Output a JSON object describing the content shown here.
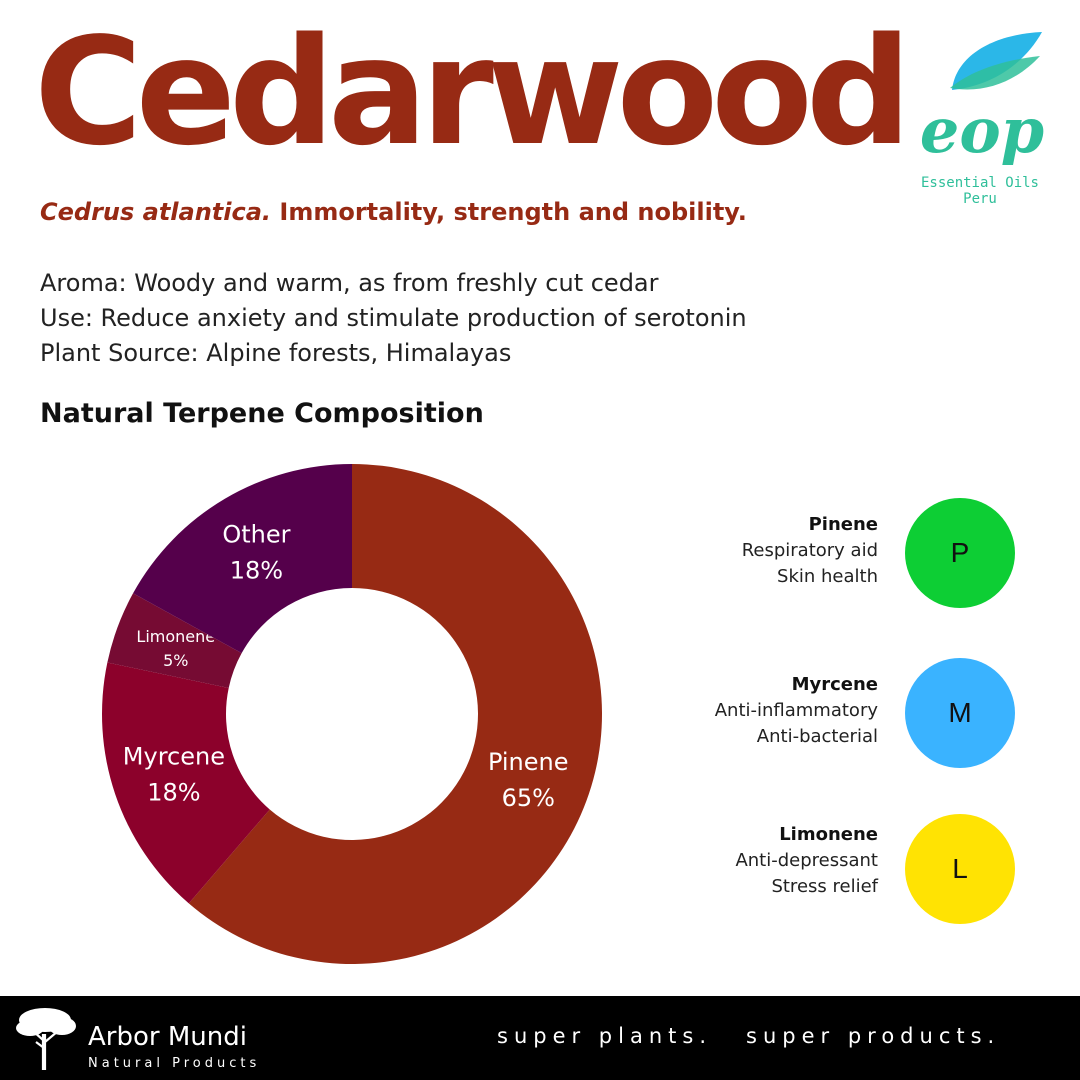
{
  "header": {
    "title": "Cedarwood",
    "species": "Cedrus atlantica.",
    "tagline": "Immortality, strength and nobility."
  },
  "info": {
    "aroma": "Aroma: Woody and warm, as from freshly cut cedar",
    "use": "Use: Reduce anxiety and stimulate production of serotonin",
    "source": "Plant Source: Alpine forests, Himalayas"
  },
  "logo": {
    "mark": "eop",
    "line1": "Essential Oils",
    "line2": "Peru",
    "color": "#2fbf9a",
    "leaf_color": "#2bb7e8"
  },
  "section_title": "Natural Terpene Composition",
  "chart_data": {
    "type": "pie",
    "donut": true,
    "title": "",
    "labels": [
      "Pinene",
      "Myrcene",
      "Limonene",
      "Other"
    ],
    "values": [
      65,
      18,
      5,
      18
    ],
    "value_labels": [
      "65%",
      "18%",
      "5%",
      "18%"
    ],
    "colors": [
      "#972a14",
      "#8c012b",
      "#760b33",
      "#55004b"
    ],
    "start": "top",
    "direction": "clockwise"
  },
  "benefits": [
    {
      "name": "Pinene",
      "lines": [
        "Respiratory aid",
        "Skin health"
      ],
      "letter": "P",
      "color": "#0dce34"
    },
    {
      "name": "Myrcene",
      "lines": [
        "Anti-inflammatory",
        "Anti-bacterial"
      ],
      "letter": "M",
      "color": "#3ab3ff"
    },
    {
      "name": "Limonene",
      "lines": [
        "Anti-depressant",
        "Stress relief"
      ],
      "letter": "L",
      "color": "#ffe303"
    }
  ],
  "footer": {
    "brand": "Arbor Mundi",
    "brand_sub": "Natural Products",
    "tagline_1": "super plants.",
    "tagline_2": "super products."
  },
  "colors": {
    "accent": "#972a14",
    "footer_bg": "#000000"
  }
}
